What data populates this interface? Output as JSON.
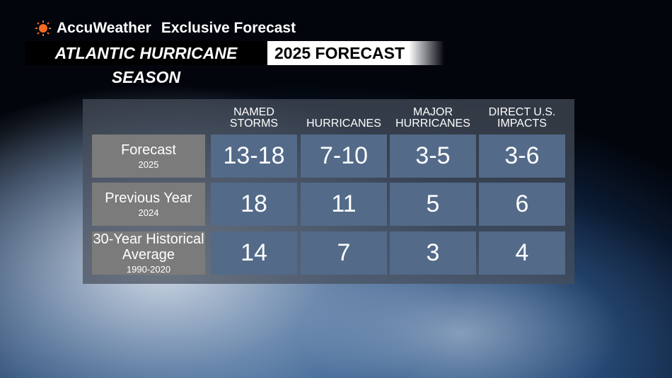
{
  "header": {
    "brand": "AccuWeather",
    "tag": "Exclusive Forecast",
    "title_left": "ATLANTIC HURRICANE SEASON",
    "title_right": "2025 FORECAST"
  },
  "table": {
    "columns": [
      "NAMED STORMS",
      "HURRICANES",
      "MAJOR HURRICANES",
      "DIRECT U.S. IMPACTS"
    ],
    "rows": [
      {
        "label": "Forecast",
        "sublabel": "2025",
        "values": [
          "13-18",
          "7-10",
          "3-5",
          "3-6"
        ]
      },
      {
        "label": "Previous Year",
        "sublabel": "2024",
        "values": [
          18,
          11,
          5,
          6
        ]
      },
      {
        "label": "30-Year Historical Average",
        "sublabel": "1990-2020",
        "values": [
          14,
          7,
          3,
          4
        ]
      }
    ]
  }
}
